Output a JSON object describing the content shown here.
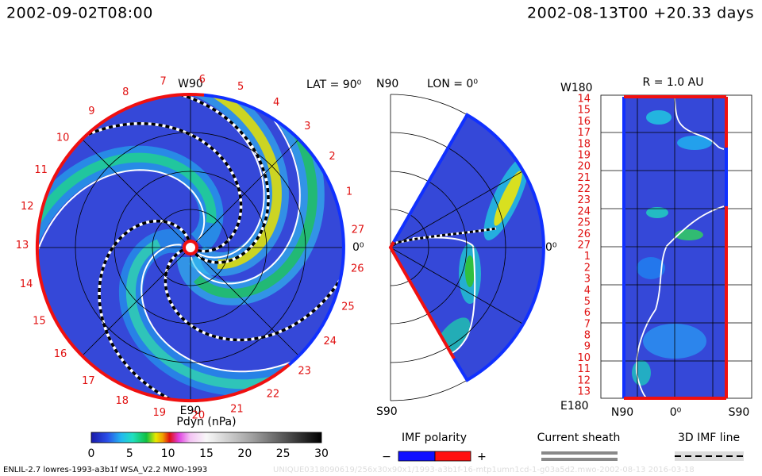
{
  "header": {
    "left": "2002-09-02T08:00",
    "right": "2002-08-13T00 +20.33 days"
  },
  "left_panel": {
    "top_label": "W90",
    "bottom_label": "E90",
    "right_label": "0⁰",
    "lat_label": "LAT = 90⁰",
    "day_labels": [
      1,
      2,
      3,
      4,
      5,
      6,
      7,
      8,
      9,
      10,
      11,
      12,
      13,
      14,
      15,
      16,
      17,
      18,
      19,
      20,
      21,
      22,
      23,
      24,
      25,
      26,
      27
    ]
  },
  "middle_panel": {
    "top_label": "N90",
    "bottom_label": "S90",
    "right_label": "0⁰",
    "lon_label": "LON = 0⁰"
  },
  "right_panel": {
    "title": "R = 1.0 AU",
    "top_left_label": "W180",
    "bottom_left_label": "E180",
    "bottom_labels": [
      "N90",
      "0⁰",
      "S90"
    ],
    "day_labels": [
      14,
      15,
      16,
      17,
      18,
      19,
      20,
      21,
      22,
      23,
      24,
      25,
      26,
      27,
      1,
      2,
      3,
      4,
      5,
      6,
      7,
      8,
      9,
      10,
      11,
      12,
      13
    ]
  },
  "colorbar": {
    "label": "Pdyn (nPa)",
    "ticks": [
      0,
      5,
      10,
      15,
      20,
      25,
      30
    ]
  },
  "legend": {
    "polarity_title": "IMF polarity",
    "minus": "−",
    "plus": "+",
    "current_sheath": "Current sheath",
    "imf_line": "3D IMF line"
  },
  "footer": {
    "left": "ENLIL-2.7 lowres-1993-a3b1f WSA_V2.2 MWO-1993",
    "right": "UNIQUE0318090619/256x30x90x1/1993-a3b1f-16-mtp1umn1cd-1-g03a5d2.mwo-2002-08-13   2016-03-18"
  }
}
